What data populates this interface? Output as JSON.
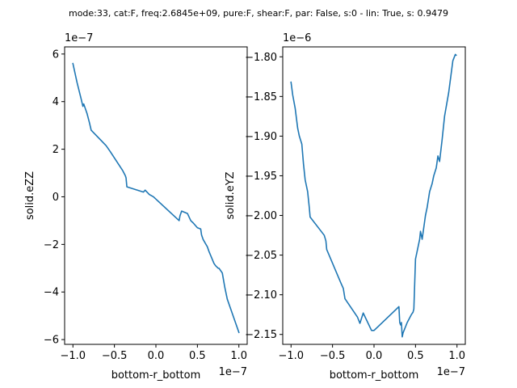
{
  "suptitle": "mode:33, cat:F, freq:2.6845e+09, pure:F, shear:F, par: False, s:0 - lin: True, s: 0.9479",
  "line_color": "#1f77b4",
  "chart_data": [
    {
      "type": "line",
      "xlabel": "bottom-r_bottom",
      "ylabel": "solid.eZZ",
      "x_offset_text": "1e−7",
      "y_offset_text": "1e−7",
      "x_scale": 1e-07,
      "y_scale": 1e-07,
      "xlim": [
        -1.1e-07,
        1.1e-07
      ],
      "ylim": [
        -6.2e-07,
        6.3e-07
      ],
      "x_ticks": [
        -1e-07,
        -5e-08,
        0,
        5e-08,
        1e-07
      ],
      "x_tick_labels": [
        "−1.0",
        "−0.5",
        "0.0",
        "0.5",
        "1.0"
      ],
      "y_ticks": [
        -6e-07,
        -4e-07,
        -2e-07,
        0,
        2e-07,
        4e-07,
        6e-07
      ],
      "y_tick_labels": [
        "−6",
        "−4",
        "−2",
        "0",
        "2",
        "4",
        "6"
      ],
      "grid": false,
      "series": [
        {
          "x": [
            -1e-07,
            -9.5e-08,
            -9e-08,
            -8.8e-08,
            -8.7e-08,
            -8.5e-08,
            -8.3e-08,
            -8e-08,
            -7.8e-08,
            -6e-08,
            -5.5e-08,
            -4e-08,
            -3.7e-08,
            -3.6e-08,
            -3.5e-08,
            -1.5e-08,
            -1.3e-08,
            -8e-09,
            -3e-09,
            2.8e-08,
            2.9e-08,
            3.1e-08,
            3.8e-08,
            4.2e-08,
            4.5e-08,
            5e-08,
            5.4e-08,
            5.5e-08,
            5.7e-08,
            6.2e-08,
            6.4e-08,
            7e-08,
            7.2e-08,
            7.5e-08,
            7.6e-08,
            7.8e-08,
            8e-08,
            8.3e-08,
            8.6e-08,
            1e-07
          ],
          "y": [
            5.6e-07,
            4.8e-07,
            4.1e-07,
            3.8e-07,
            3.9e-07,
            3.7e-07,
            3.5e-07,
            3.1e-07,
            2.8e-07,
            2.15e-07,
            1.9e-07,
            1.1e-07,
            9e-08,
            8e-08,
            4.2e-08,
            2e-08,
            2.8e-08,
            1e-08,
            0.0,
            -1e-07,
            -8e-08,
            -6e-08,
            -7e-08,
            -1e-07,
            -1.1e-07,
            -1.3e-07,
            -1.35e-07,
            -1.6e-07,
            -1.8e-07,
            -2.1e-07,
            -2.3e-07,
            -2.8e-07,
            -2.9e-07,
            -3e-07,
            -3e-07,
            -3.1e-07,
            -3.2e-07,
            -3.8e-07,
            -4.3e-07,
            -5.7e-07
          ]
        }
      ]
    },
    {
      "type": "line",
      "xlabel": "bottom-r_bottom",
      "ylabel": "solid.eYZ",
      "x_offset_text": "1e−7",
      "y_offset_text": "1e−6",
      "x_scale": 1e-07,
      "y_scale": 1e-06,
      "xlim": [
        -1.1e-07,
        1.1e-07
      ],
      "ylim": [
        -2.1625e-06,
        -1.7875e-06
      ],
      "x_ticks": [
        -1e-07,
        -5e-08,
        0,
        5e-08,
        1e-07
      ],
      "x_tick_labels": [
        "−1.0",
        "−0.5",
        "0.0",
        "0.5",
        "1.0"
      ],
      "y_ticks": [
        -2.15e-06,
        -2.1e-06,
        -2.05e-06,
        -2e-06,
        -1.95e-06,
        -1.9e-06,
        -1.85e-06,
        -1.8e-06
      ],
      "y_tick_labels": [
        "−2.15",
        "−2.10",
        "−2.05",
        "−2.00",
        "−1.95",
        "−1.90",
        "−1.85",
        "−1.80"
      ],
      "grid": false,
      "series": [
        {
          "x": [
            -1e-07,
            -9.8e-08,
            -9.5e-08,
            -9.2e-08,
            -9e-08,
            -8.7e-08,
            -8.5e-08,
            -8.3e-08,
            -8e-08,
            -7.8e-08,
            -7.7e-08,
            -6e-08,
            -5.8e-08,
            -5.7e-08,
            -4e-08,
            -3.7e-08,
            -3.5e-08,
            -2e-08,
            -1.7e-08,
            -1.3e-08,
            -3e-09,
            0.0,
            5e-09,
            3e-08,
            3.1e-08,
            3.2e-08,
            3.3e-08,
            3.4e-08,
            3.5e-08,
            4e-08,
            4.5e-08,
            4.7e-08,
            4.8e-08,
            5e-08,
            5.5e-08,
            5.6e-08,
            5.8e-08,
            6.2e-08,
            6.4e-08,
            6.7e-08,
            7e-08,
            7.2e-08,
            7.5e-08,
            7.7e-08,
            7.9e-08,
            8.2e-08,
            8.5e-08,
            9e-08,
            9.5e-08,
            9.8e-08,
            9.9e-08
          ],
          "y": [
            -1.832e-06,
            -1.848e-06,
            -1.865e-06,
            -1.89e-06,
            -1.9e-06,
            -1.91e-06,
            -1.935e-06,
            -1.955e-06,
            -1.97e-06,
            -1.99e-06,
            -2.002e-06,
            -2.025e-06,
            -2.032e-06,
            -2.043e-06,
            -2.085e-06,
            -2.092e-06,
            -2.105e-06,
            -2.128e-06,
            -2.136e-06,
            -2.123e-06,
            -2.145e-06,
            -2.145e-06,
            -2.14e-06,
            -2.115e-06,
            -2.135e-06,
            -2.138e-06,
            -2.135e-06,
            -2.153e-06,
            -2.148e-06,
            -2.135e-06,
            -2.125e-06,
            -2.122e-06,
            -2.118e-06,
            -2.055e-06,
            -2.03e-06,
            -2.02e-06,
            -2.03e-06,
            -2e-06,
            -1.99e-06,
            -1.97e-06,
            -1.96e-06,
            -1.95e-06,
            -1.94e-06,
            -1.925e-06,
            -1.932e-06,
            -1.905e-06,
            -1.875e-06,
            -1.845e-06,
            -1.805e-06,
            -1.797e-06,
            -1.798e-06
          ]
        }
      ]
    }
  ]
}
